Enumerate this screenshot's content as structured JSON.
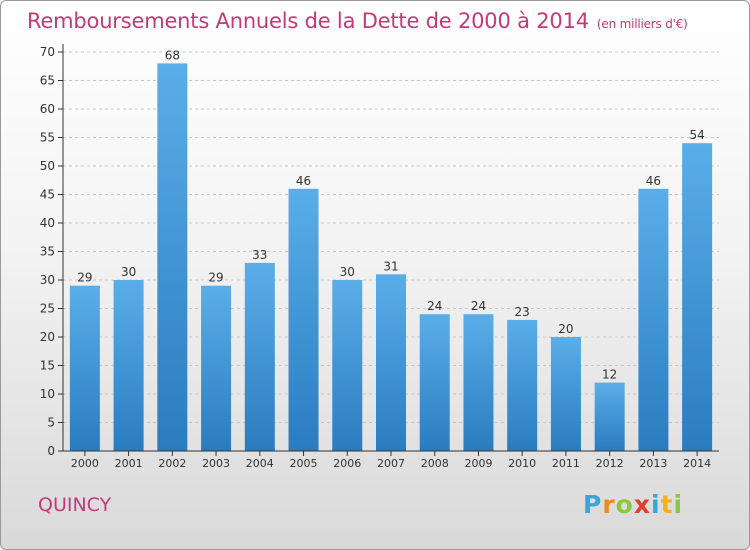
{
  "header": {
    "title": "Remboursements Annuels de la Dette de 2000 à 2014",
    "unit": "(en milliers d'€)"
  },
  "footer": {
    "place": "QUINCY",
    "logo_letters": [
      {
        "ch": "P",
        "color": "#3aa5d8"
      },
      {
        "ch": "r",
        "color": "#f08a1d"
      },
      {
        "ch": "o",
        "color": "#8dc63f"
      },
      {
        "ch": "x",
        "color": "#e43c2f"
      },
      {
        "ch": "i",
        "color": "#3aa5d8"
      },
      {
        "ch": "t",
        "color": "#f0b21d"
      },
      {
        "ch": "i",
        "color": "#8dc63f"
      }
    ]
  },
  "colors": {
    "title": "#c33a77",
    "bar_top": "#5aaee8",
    "bar_bottom": "#2a7cc0",
    "axis": "#333333",
    "grid": "#c8c8c8"
  },
  "chart_data": {
    "type": "bar",
    "title": "Remboursements Annuels de la Dette de 2000 à 2014",
    "xlabel": "",
    "ylabel": "",
    "ylim": [
      0,
      70
    ],
    "yticks": [
      0,
      5,
      10,
      15,
      20,
      25,
      30,
      35,
      40,
      45,
      50,
      55,
      60,
      65,
      70
    ],
    "grid": true,
    "categories": [
      "2000",
      "2001",
      "2002",
      "2003",
      "2004",
      "2005",
      "2006",
      "2007",
      "2008",
      "2009",
      "2010",
      "2011",
      "2012",
      "2013",
      "2014"
    ],
    "values": [
      29,
      30,
      68,
      29,
      33,
      46,
      30,
      31,
      24,
      24,
      23,
      20,
      12,
      46,
      54
    ]
  }
}
